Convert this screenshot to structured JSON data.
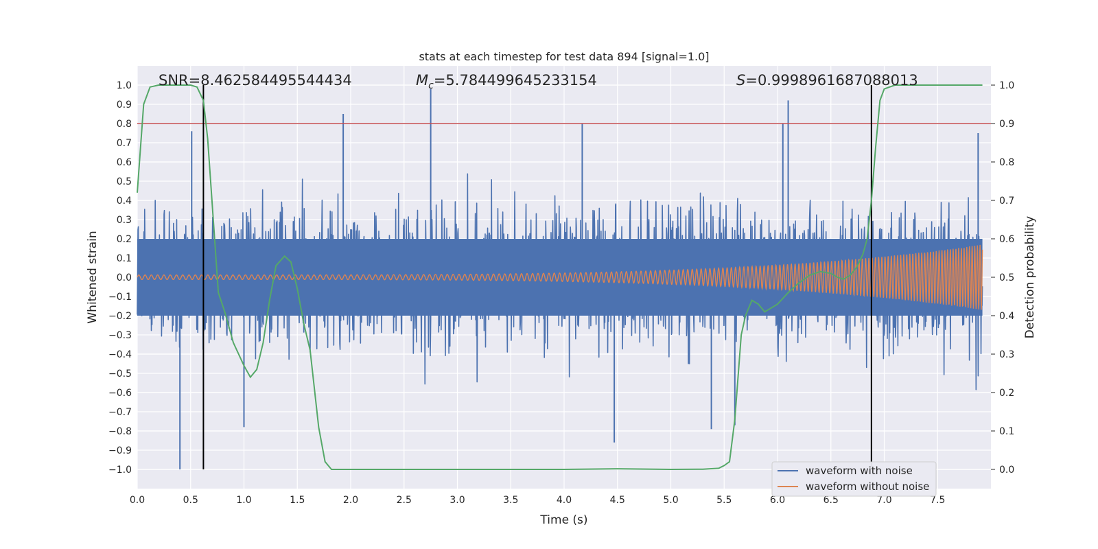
{
  "chart_data": {
    "type": "line",
    "title": "stats at each timestep for test data 894 [signal=1.0]",
    "xlabel": "Time (s)",
    "ylabel": "Whitened strain",
    "y2label": "Detection probability",
    "xlim": [
      0.0,
      8.0
    ],
    "ylim": [
      -1.1,
      1.1
    ],
    "y2lim": [
      -0.05,
      1.05
    ],
    "xticks": [
      0.0,
      0.5,
      1.0,
      1.5,
      2.0,
      2.5,
      3.0,
      3.5,
      4.0,
      4.5,
      5.0,
      5.5,
      6.0,
      6.5,
      7.0,
      7.5
    ],
    "xtick_labels": [
      "0.0",
      "0.5",
      "1.0",
      "1.5",
      "2.0",
      "2.5",
      "3.0",
      "3.5",
      "4.0",
      "4.5",
      "5.0",
      "5.5",
      "6.0",
      "6.5",
      "7.0",
      "7.5"
    ],
    "yticks": [
      1.0,
      0.9,
      0.8,
      0.7,
      0.6,
      0.5,
      0.4,
      0.3,
      0.2,
      0.1,
      0.0,
      -0.1,
      -0.2,
      -0.3,
      -0.4,
      -0.5,
      -0.6,
      -0.7,
      -0.8,
      -0.9,
      -1.0
    ],
    "ytick_labels": [
      "1.0",
      "0.9",
      "0.8",
      "0.7",
      "0.6",
      "0.5",
      "0.4",
      "0.3",
      "0.2",
      "0.1",
      "0.0",
      "−0.1",
      "−0.2",
      "−0.3",
      "−0.4",
      "−0.5",
      "−0.6",
      "−0.7",
      "−0.8",
      "−0.9",
      "−1.0"
    ],
    "y2ticks": [
      1.0,
      0.9,
      0.8,
      0.7,
      0.6,
      0.5,
      0.4,
      0.3,
      0.2,
      0.1,
      0.0
    ],
    "y2tick_labels": [
      "1.0",
      "0.9",
      "0.8",
      "0.7",
      "0.6",
      "0.5",
      "0.4",
      "0.3",
      "0.2",
      "0.1",
      "0.0"
    ],
    "annotations": {
      "snr": "SNR=8.462584495544434",
      "mc_symbol": "M",
      "mc_sub": "c",
      "mc_value": "=5.784499645233154",
      "s_symbol": "S",
      "s_value": "=0.9998961687088013"
    },
    "vlines_x": [
      0.62,
      6.88
    ],
    "threshold_y2": 0.9,
    "noise_series": {
      "name": "waveform with noise",
      "color": "#4c72b0",
      "x_end": 7.92,
      "spikes": [
        {
          "x": 0.4,
          "y": -1.0
        },
        {
          "x": 0.51,
          "y": 0.76
        },
        {
          "x": 1.93,
          "y": 0.85
        },
        {
          "x": 2.75,
          "y": 0.98
        },
        {
          "x": 4.17,
          "y": 0.8
        },
        {
          "x": 4.47,
          "y": -0.86
        },
        {
          "x": 6.05,
          "y": 0.8
        },
        {
          "x": 6.1,
          "y": 0.92
        },
        {
          "x": 7.88,
          "y": 0.75
        },
        {
          "x": 1.0,
          "y": -0.78
        },
        {
          "x": 5.38,
          "y": -0.79
        },
        {
          "x": 5.6,
          "y": -0.77
        }
      ]
    },
    "signal_series": {
      "name": "waveform without noise",
      "color": "#dd8452",
      "x_end": 7.92,
      "amp_start": 0.012,
      "amp_end": 0.17
    },
    "probability_series": {
      "name": "detection probability",
      "color": "#55a868",
      "x": [
        0.0,
        0.06,
        0.12,
        0.2,
        0.3,
        0.4,
        0.5,
        0.56,
        0.62,
        0.66,
        0.7,
        0.76,
        0.82,
        0.9,
        1.0,
        1.06,
        1.12,
        1.18,
        1.24,
        1.3,
        1.38,
        1.44,
        1.5,
        1.56,
        1.62,
        1.7,
        1.76,
        1.82,
        2.0,
        3.0,
        4.0,
        4.5,
        5.0,
        5.3,
        5.45,
        5.5,
        5.55,
        5.6,
        5.66,
        5.7,
        5.76,
        5.82,
        5.88,
        5.94,
        6.0,
        6.1,
        6.2,
        6.3,
        6.4,
        6.5,
        6.56,
        6.62,
        6.68,
        6.74,
        6.8,
        6.84,
        6.88,
        6.92,
        6.96,
        7.0,
        7.1,
        7.5,
        7.92
      ],
      "y": [
        0.72,
        0.95,
        0.995,
        1.0,
        1.0,
        1.0,
        1.0,
        0.995,
        0.96,
        0.86,
        0.7,
        0.46,
        0.41,
        0.33,
        0.27,
        0.24,
        0.26,
        0.33,
        0.44,
        0.53,
        0.555,
        0.54,
        0.47,
        0.38,
        0.31,
        0.11,
        0.02,
        0.0,
        0.0,
        0.0,
        0.0,
        0.0015,
        0.0,
        0.0005,
        0.003,
        0.01,
        0.02,
        0.13,
        0.35,
        0.4,
        0.44,
        0.43,
        0.41,
        0.42,
        0.43,
        0.46,
        0.485,
        0.505,
        0.515,
        0.51,
        0.5,
        0.495,
        0.505,
        0.525,
        0.56,
        0.6,
        0.7,
        0.84,
        0.96,
        0.99,
        1.0,
        1.0,
        1.0
      ]
    },
    "legend": {
      "position": "lower right",
      "entries": [
        {
          "label": "waveform with noise",
          "color": "#4c72b0"
        },
        {
          "label": "waveform without noise",
          "color": "#dd8452"
        }
      ]
    },
    "grid": true,
    "colors": {
      "background": "#eaeaf2",
      "grid": "#ffffff",
      "threshold": "#c44e52",
      "vline": "#000000"
    }
  }
}
